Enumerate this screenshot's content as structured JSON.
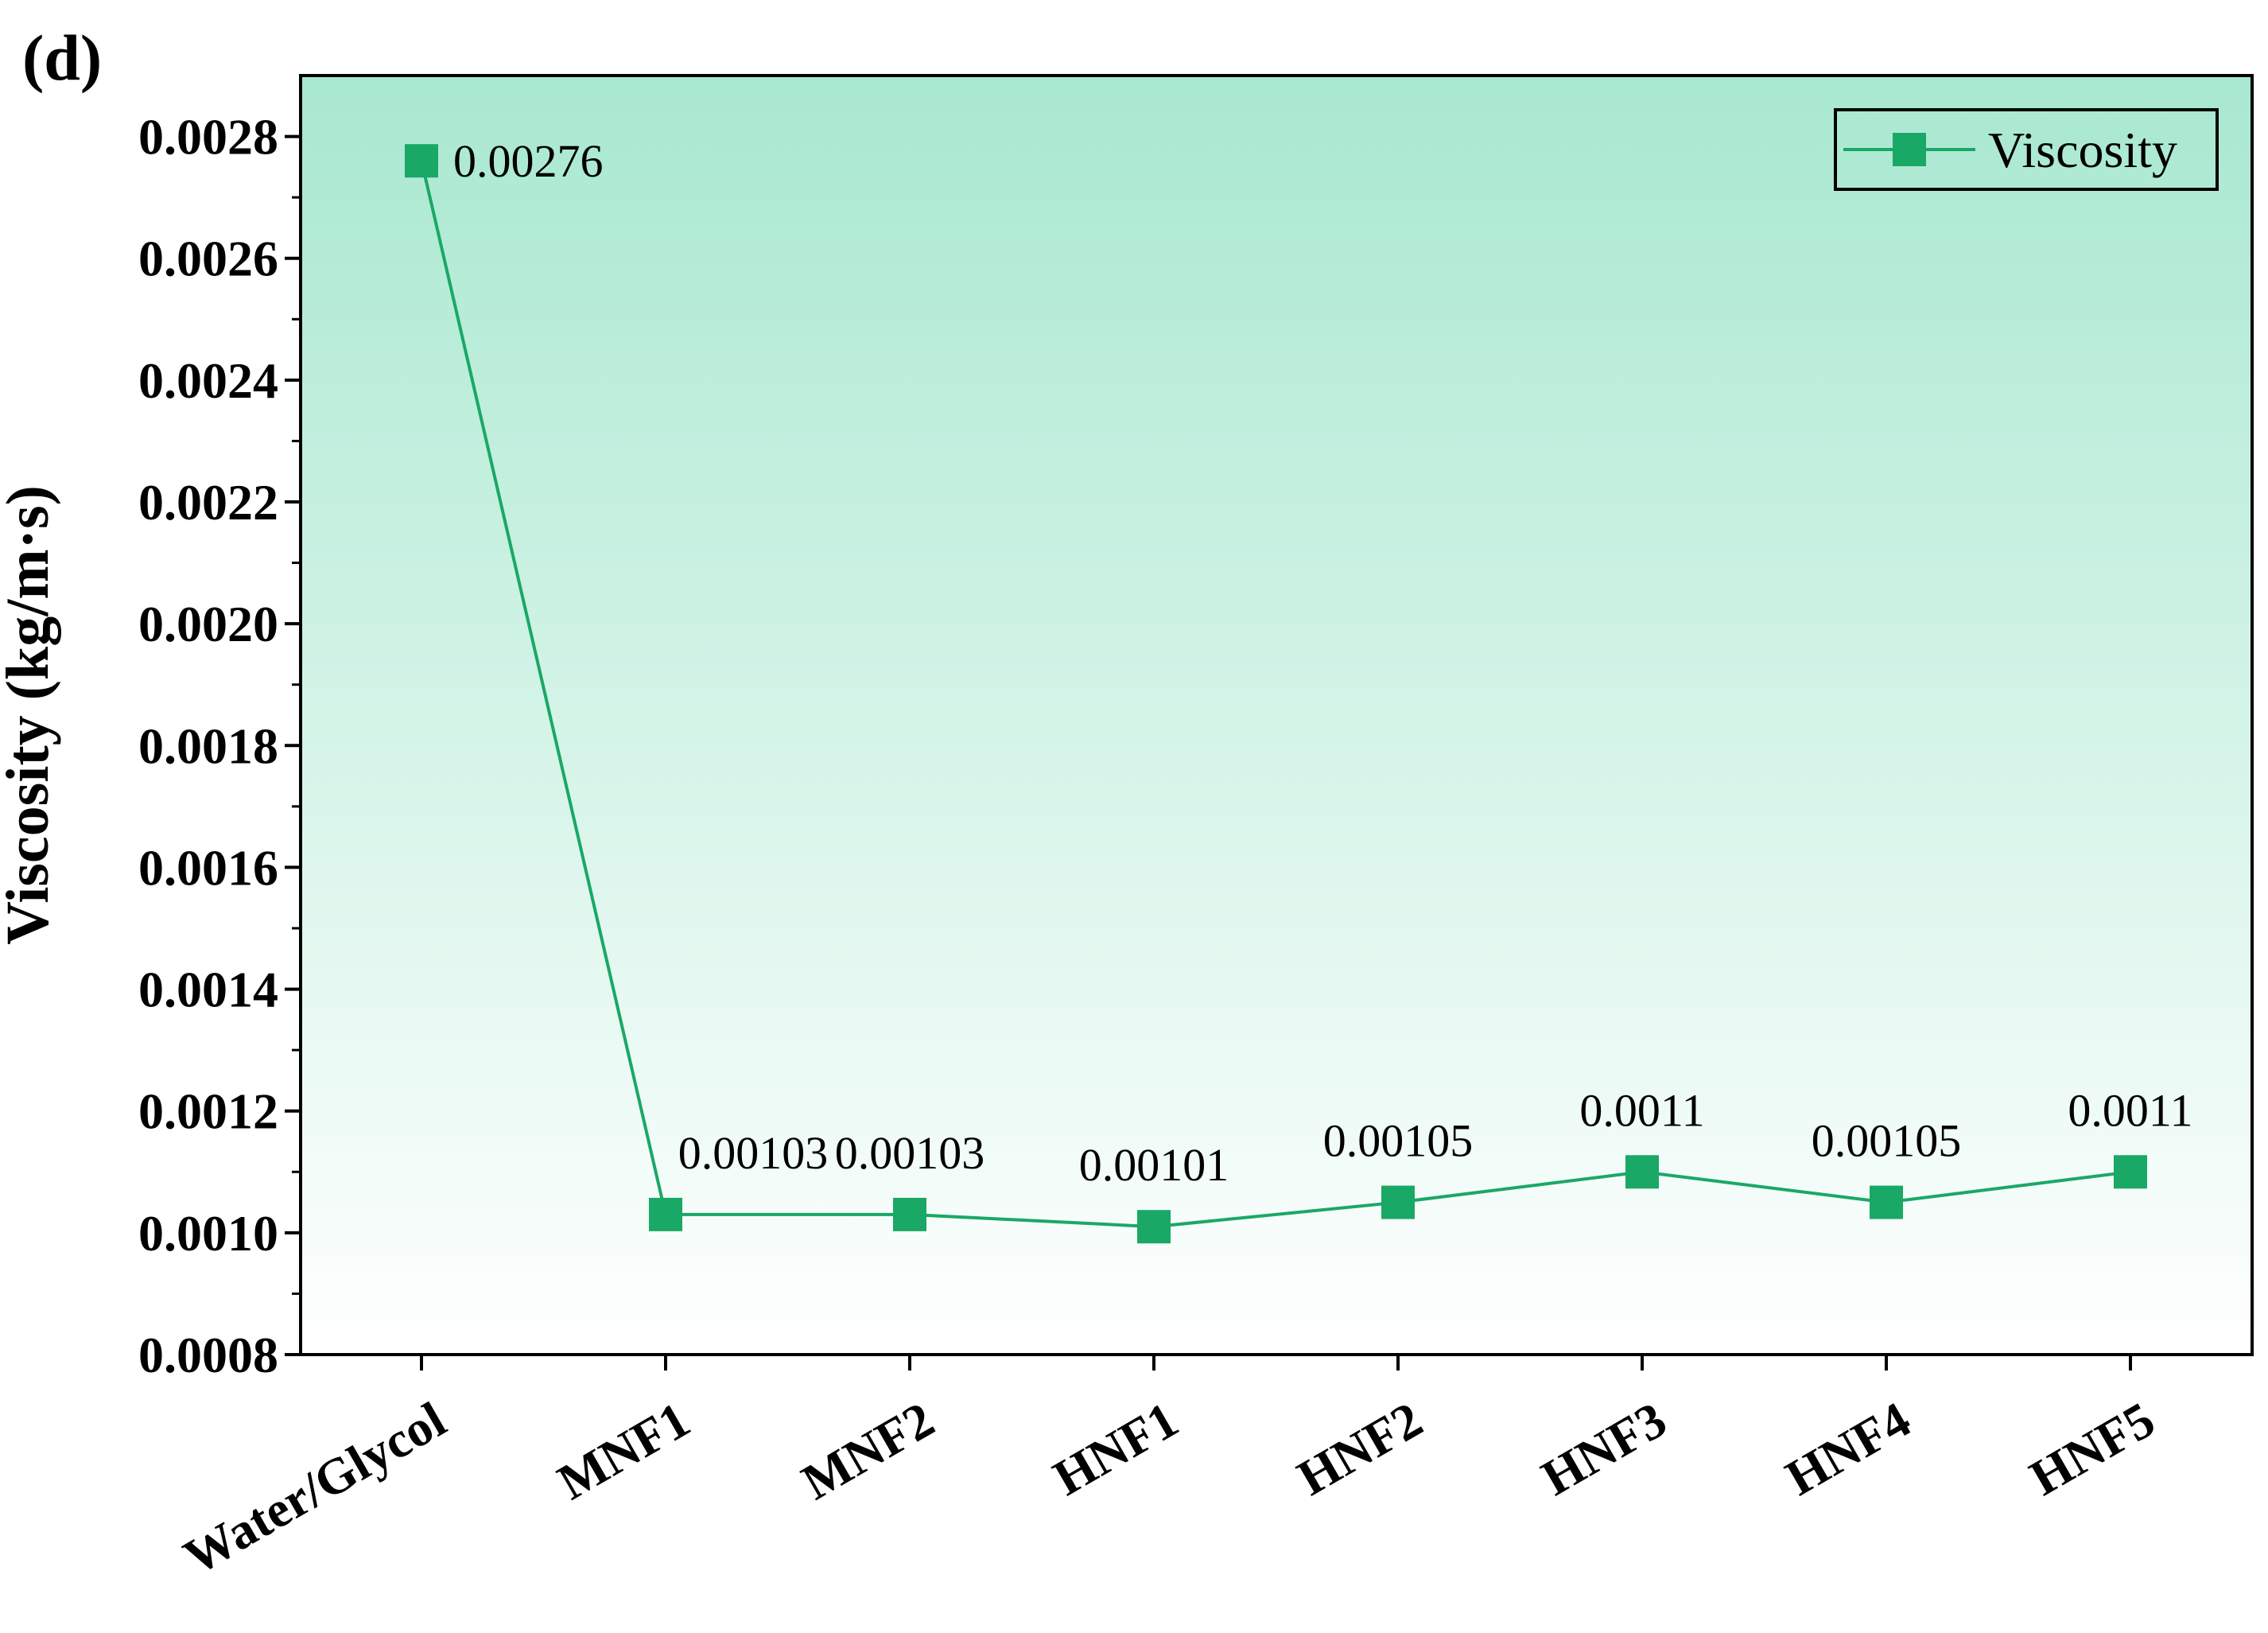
{
  "panel_label": "(d)",
  "colors": {
    "series": "#1aa866",
    "marker": "#1aa866",
    "gradient_top": "#a8e8d0",
    "gradient_bottom": "#ffffff",
    "axis": "#000000"
  },
  "chart_data": {
    "type": "line",
    "title": "",
    "xlabel": "",
    "ylabel": "Viscosity (kg/m·s)",
    "categories": [
      "Water/Glycol",
      "MNF1",
      "MNF2",
      "HNF1",
      "HNF2",
      "HNF3",
      "HNF4",
      "HNF5"
    ],
    "series": [
      {
        "name": "Viscosity",
        "values": [
          0.00276,
          0.00103,
          0.00103,
          0.00101,
          0.00105,
          0.0011,
          0.00105,
          0.0011
        ],
        "data_labels": [
          "0.00276",
          "0.00103",
          "0.00103",
          "0.00101",
          "0.00105",
          "0.0011",
          "0.00105",
          "0.0011"
        ],
        "marker": "square"
      }
    ],
    "ylim": [
      0.0008,
      0.0029
    ],
    "yticks": [
      0.0008,
      0.001,
      0.0012,
      0.0014,
      0.0016,
      0.0018,
      0.002,
      0.0022,
      0.0024,
      0.0026,
      0.0028
    ],
    "ytick_labels": [
      "0.0008",
      "0.0010",
      "0.0012",
      "0.0014",
      "0.0016",
      "0.0018",
      "0.0020",
      "0.0022",
      "0.0024",
      "0.0026",
      "0.0028"
    ],
    "legend": {
      "position": "top-right",
      "entries": [
        "Viscosity"
      ]
    },
    "grid": false,
    "background": "vertical gradient (green to white)"
  }
}
